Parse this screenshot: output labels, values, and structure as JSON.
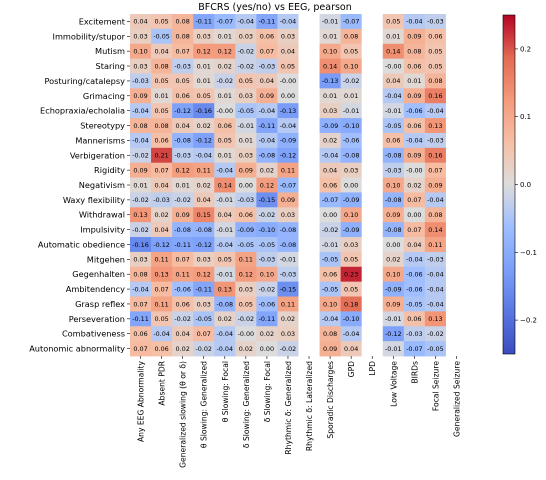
{
  "chart_data": {
    "type": "heatmap",
    "title": "BFCRS (yes/no) vs EEG, pearson",
    "xlabel": "",
    "ylabel": "",
    "rows": [
      "Excitement",
      "Immobility/stupor",
      "Mutism",
      "Staring",
      "Posturing/catalepsy",
      "Grimacing",
      "Echopraxia/echolalia",
      "Stereotypy",
      "Mannerisms",
      "Verbigeration",
      "Rigidity",
      "Negativism",
      "Waxy flexibility",
      "Withdrawal",
      "Impulsivity",
      "Automatic obedience",
      "Mitgehen",
      "Gegenhalten",
      "Ambitendency",
      "Grasp reflex",
      "Perseveration",
      "Combativeness",
      "Autonomic abnormality"
    ],
    "columns": [
      "Any EEG Abnormality",
      "Absent PDR",
      "Generalized slowing (θ or δ)",
      "θ Slowing: Generalized",
      "θ Slowing: Focal",
      "δ Slowing: Generalized",
      "δ Slowing: Focal",
      "Rhythmic δ: Generalized",
      "Rhythmic δ: Lateralized",
      "Sporadic Discharges",
      "GPD",
      "LPD",
      "Low Voltage",
      "BIRDs",
      "Focal Seizure",
      "Generalized Seizure"
    ],
    "values": [
      [
        "0.04",
        "0.05",
        "0.08",
        "-0.11",
        "-0.07",
        "-0.04",
        "-0.11",
        "-0.04",
        "",
        "-0.01",
        "-0.07",
        "",
        "0.05",
        "-0.04",
        "-0.03",
        ""
      ],
      [
        "0.03",
        "-0.05",
        "0.08",
        "0.03",
        "0.01",
        "0.03",
        "0.06",
        "0.03",
        "",
        "0.01",
        "0.08",
        "",
        "0.01",
        "0.09",
        "0.06",
        ""
      ],
      [
        "0.10",
        "0.04",
        "0.07",
        "0.12",
        "0.12",
        "-0.02",
        "0.07",
        "0.04",
        "",
        "0.10",
        "0.05",
        "",
        "0.14",
        "0.08",
        "0.05",
        ""
      ],
      [
        "0.03",
        "0.08",
        "-0.03",
        "0.01",
        "0.02",
        "-0.02",
        "-0.03",
        "0.05",
        "",
        "0.14",
        "0.10",
        "",
        "-0.00",
        "0.06",
        "0.05",
        ""
      ],
      [
        "-0.03",
        "0.05",
        "0.05",
        "0.01",
        "-0.02",
        "0.05",
        "0.04",
        "-0.00",
        "",
        "-0.13",
        "-0.02",
        "",
        "0.04",
        "0.01",
        "0.08",
        ""
      ],
      [
        "0.09",
        "0.01",
        "0.06",
        "0.05",
        "0.01",
        "0.03",
        "0.09",
        "0.00",
        "",
        "0.01",
        "0.01",
        "",
        "-0.04",
        "0.09",
        "0.16",
        ""
      ],
      [
        "-0.04",
        "0.05",
        "-0.12",
        "-0.16",
        "-0.00",
        "-0.05",
        "-0.04",
        "-0.13",
        "",
        "0.03",
        "-0.01",
        "",
        "-0.01",
        "-0.06",
        "-0.04",
        ""
      ],
      [
        "0.08",
        "0.08",
        "0.04",
        "0.02",
        "0.06",
        "-0.01",
        "-0.11",
        "-0.04",
        "",
        "-0.09",
        "-0.10",
        "",
        "-0.05",
        "0.06",
        "0.13",
        ""
      ],
      [
        "-0.04",
        "0.06",
        "-0.08",
        "-0.12",
        "0.05",
        "0.01",
        "-0.04",
        "-0.09",
        "",
        "0.02",
        "-0.06",
        "",
        "0.06",
        "-0.04",
        "-0.03",
        ""
      ],
      [
        "-0.02",
        "0.21",
        "-0.03",
        "-0.04",
        "0.01",
        "0.03",
        "-0.08",
        "-0.12",
        "",
        "-0.04",
        "-0.08",
        "",
        "-0.08",
        "0.09",
        "0.16",
        ""
      ],
      [
        "0.09",
        "0.07",
        "0.12",
        "0.11",
        "-0.04",
        "0.09",
        "0.02",
        "0.11",
        "",
        "0.04",
        "0.03",
        "",
        "-0.03",
        "-0.00",
        "0.07",
        ""
      ],
      [
        "0.01",
        "0.04",
        "0.01",
        "0.02",
        "0.14",
        "0.00",
        "0.12",
        "-0.07",
        "",
        "0.06",
        "0.00",
        "",
        "0.10",
        "0.02",
        "0.09",
        ""
      ],
      [
        "-0.02",
        "-0.03",
        "-0.02",
        "0.04",
        "-0.01",
        "-0.03",
        "-0.15",
        "0.09",
        "",
        "-0.07",
        "-0.09",
        "",
        "-0.08",
        "0.07",
        "-0.04",
        ""
      ],
      [
        "0.13",
        "0.02",
        "0.09",
        "0.15",
        "0.04",
        "0.06",
        "-0.02",
        "0.03",
        "",
        "0.00",
        "0.10",
        "",
        "0.09",
        "0.00",
        "0.08",
        ""
      ],
      [
        "-0.02",
        "0.04",
        "-0.08",
        "-0.08",
        "-0.01",
        "-0.09",
        "-0.10",
        "-0.08",
        "",
        "-0.02",
        "-0.09",
        "",
        "-0.08",
        "0.07",
        "0.14",
        ""
      ],
      [
        "-0.16",
        "-0.12",
        "-0.11",
        "-0.12",
        "-0.04",
        "-0.05",
        "-0.05",
        "-0.08",
        "",
        "-0.01",
        "0.03",
        "",
        "0.00",
        "0.04",
        "0.11",
        ""
      ],
      [
        "0.03",
        "0.11",
        "0.07",
        "0.03",
        "0.05",
        "0.11",
        "-0.03",
        "-0.01",
        "",
        "-0.05",
        "0.05",
        "",
        "0.02",
        "-0.04",
        "-0.03",
        ""
      ],
      [
        "0.08",
        "0.13",
        "0.11",
        "0.12",
        "-0.01",
        "0.12",
        "0.10",
        "-0.03",
        "",
        "0.06",
        "0.23",
        "",
        "0.10",
        "-0.06",
        "-0.04",
        ""
      ],
      [
        "-0.04",
        "0.07",
        "-0.06",
        "-0.11",
        "0.13",
        "0.03",
        "-0.02",
        "-0.15",
        "",
        "-0.05",
        "0.05",
        "",
        "-0.09",
        "-0.06",
        "-0.04",
        ""
      ],
      [
        "0.07",
        "0.11",
        "0.06",
        "0.03",
        "-0.08",
        "0.05",
        "-0.06",
        "0.11",
        "",
        "0.10",
        "0.18",
        "",
        "0.09",
        "-0.05",
        "-0.04",
        ""
      ],
      [
        "-0.11",
        "0.05",
        "-0.02",
        "-0.05",
        "0.02",
        "-0.02",
        "-0.11",
        "0.02",
        "",
        "-0.04",
        "-0.10",
        "",
        "-0.01",
        "0.06",
        "0.13",
        ""
      ],
      [
        "0.06",
        "-0.04",
        "0.04",
        "0.07",
        "-0.04",
        "-0.00",
        "0.02",
        "0.03",
        "",
        "0.08",
        "-0.04",
        "",
        "-0.12",
        "-0.03",
        "-0.02",
        ""
      ],
      [
        "0.07",
        "0.06",
        "0.02",
        "-0.02",
        "-0.04",
        "0.02",
        "0.00",
        "-0.02",
        "",
        "0.09",
        "0.04",
        "",
        "-0.01",
        "-0.07",
        "-0.05",
        ""
      ]
    ],
    "colormap": "coolwarm",
    "vmin": -0.25,
    "vmax": 0.25,
    "colorbar_ticks": [
      "0.2",
      "0.1",
      "0.0",
      "−0.1",
      "−0.2"
    ],
    "colorbar_tick_values": [
      0.2,
      0.1,
      0.0,
      -0.1,
      -0.2
    ],
    "missing_color": "#ffffff"
  }
}
